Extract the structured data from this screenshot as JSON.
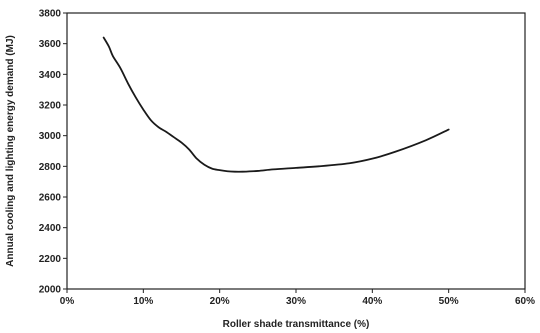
{
  "chart_data": {
    "type": "line",
    "title": "",
    "xlabel": "Roller shade transmittance (%)",
    "ylabel": "Annual cooling and lighting energy demand (MJ)",
    "xlim": [
      0,
      60
    ],
    "ylim": [
      2000,
      3800
    ],
    "x_ticks": [
      0,
      10,
      20,
      30,
      40,
      50,
      60
    ],
    "x_tick_labels": [
      "0%",
      "10%",
      "20%",
      "30%",
      "40%",
      "50%",
      "60%"
    ],
    "y_ticks": [
      2000,
      2200,
      2400,
      2600,
      2800,
      3000,
      3200,
      3400,
      3600,
      3800
    ],
    "y_tick_labels": [
      "2000",
      "2200",
      "2400",
      "2600",
      "2800",
      "3000",
      "3200",
      "3400",
      "3600",
      "3800"
    ],
    "grid": false,
    "line_color": "#1a1a1a",
    "series": [
      {
        "x": [
          4.8,
          5.5,
          6,
          7,
          8,
          9,
          10,
          11,
          12,
          13,
          14,
          15,
          16,
          17,
          18,
          19,
          20,
          21,
          22,
          23,
          25,
          27,
          30,
          33,
          37,
          40,
          43,
          47,
          50
        ],
        "values": [
          3640,
          3580,
          3520,
          3440,
          3340,
          3250,
          3170,
          3100,
          3055,
          3025,
          2990,
          2955,
          2910,
          2850,
          2810,
          2785,
          2775,
          2768,
          2765,
          2765,
          2770,
          2780,
          2790,
          2800,
          2820,
          2850,
          2895,
          2970,
          3040
        ]
      }
    ]
  }
}
